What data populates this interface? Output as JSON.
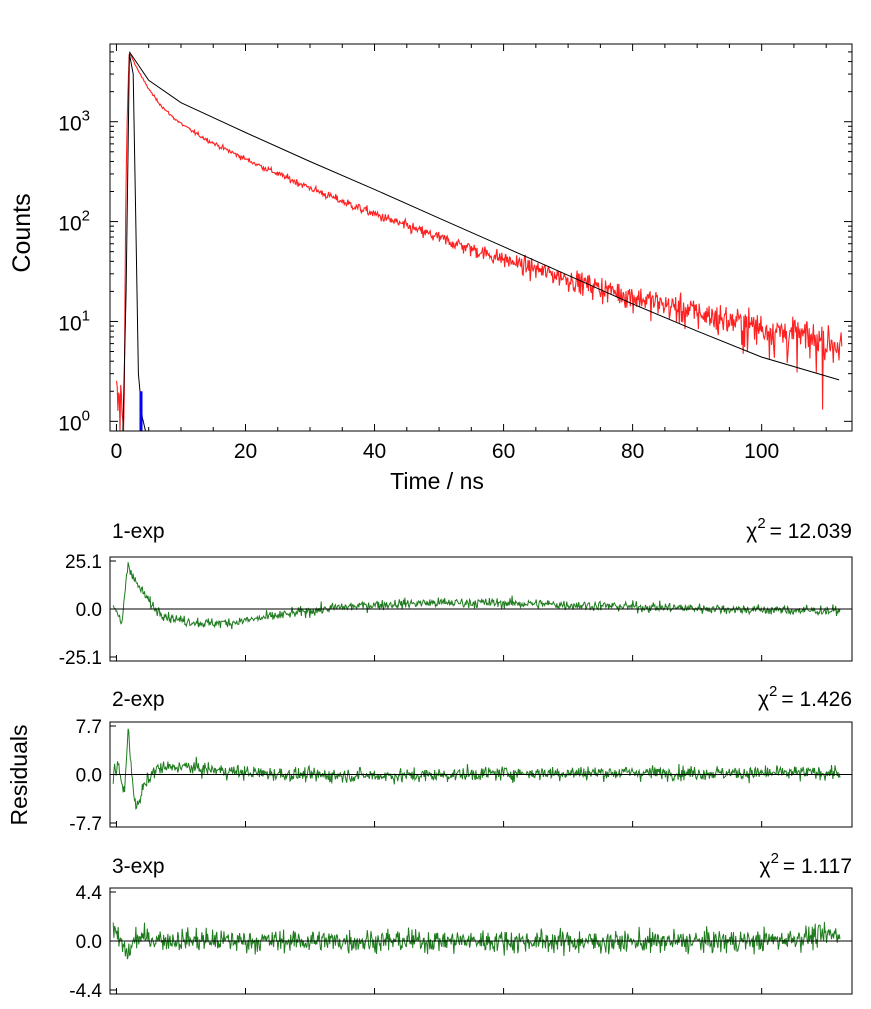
{
  "chart_data": [
    {
      "type": "line",
      "xlabel": "Time / ns",
      "ylabel": "Counts",
      "yscale": "log",
      "xlim": [
        -1,
        114
      ],
      "ylim": [
        0.8,
        6000
      ],
      "x_ticks": [
        "0",
        "20",
        "40",
        "60",
        "80",
        "100"
      ],
      "x_tick_values": [
        0,
        20,
        40,
        60,
        80,
        100
      ],
      "y_ticks": [
        {
          "value": 1,
          "base": "10",
          "exp": "0"
        },
        {
          "value": 10,
          "base": "10",
          "exp": "1"
        },
        {
          "value": 100,
          "base": "10",
          "exp": "2"
        },
        {
          "value": 1000,
          "base": "10",
          "exp": "3"
        }
      ],
      "series": [
        {
          "role": "decay",
          "color": "#ff2020",
          "decay_model": {
            "t0": 2.0,
            "rise_start": 1.2,
            "peak": 5000,
            "amplitudes": [
              3400,
              1300,
              300
            ],
            "lifetimes": [
              2.2,
              11.5,
              26.0
            ],
            "background": 1.5
          }
        },
        {
          "role": "fit",
          "color": "#000000",
          "points": [
            [
              2.0,
              5000
            ],
            [
              5,
              2600
            ],
            [
              10,
              1550
            ],
            [
              20,
              780
            ],
            [
              30,
              400
            ],
            [
              40,
              210
            ],
            [
              50,
              108
            ],
            [
              60,
              56
            ],
            [
              70,
              29
            ],
            [
              80,
              15
            ],
            [
              90,
              8
            ],
            [
              100,
              4.4
            ],
            [
              112,
              2.6
            ]
          ]
        },
        {
          "role": "irf",
          "color": "#000000",
          "points": [
            [
              1.0,
              0.8
            ],
            [
              1.5,
              20
            ],
            [
              2.0,
              4800
            ],
            [
              2.6,
              3000
            ],
            [
              3.0,
              100
            ],
            [
              3.4,
              3
            ],
            [
              4.0,
              1.1
            ],
            [
              4.5,
              0.8
            ]
          ]
        },
        {
          "role": "irf-marker",
          "color": "#0000ff",
          "points": [
            [
              3.8,
              0.8
            ],
            [
              3.8,
              2.0
            ]
          ]
        }
      ]
    },
    {
      "type": "line",
      "panel": "1-exp",
      "label": "1-exp",
      "chi_label": "χ",
      "chi_exp": "2",
      "chi_value": "= 12.039",
      "ylabel": "Residuals",
      "y_ticks": [
        "25.1",
        "0.0",
        "-25.1"
      ],
      "ylim": [
        -25.1,
        25.1
      ],
      "xlim": [
        -1,
        114
      ],
      "color": "#1e7b1e",
      "noise": 1.3,
      "shape_points": [
        [
          -0.5,
          0
        ],
        [
          0.5,
          -4
        ],
        [
          0.8,
          -10
        ],
        [
          1.2,
          6
        ],
        [
          1.8,
          24
        ],
        [
          2.8,
          15
        ],
        [
          4,
          9
        ],
        [
          6,
          0
        ],
        [
          8,
          -4
        ],
        [
          10,
          -6
        ],
        [
          14,
          -7.5
        ],
        [
          18,
          -7
        ],
        [
          22,
          -5
        ],
        [
          26,
          -3
        ],
        [
          30,
          -1
        ],
        [
          34,
          0.7
        ],
        [
          40,
          2.2
        ],
        [
          48,
          3.2
        ],
        [
          56,
          3.3
        ],
        [
          64,
          2.8
        ],
        [
          72,
          2.0
        ],
        [
          80,
          1.2
        ],
        [
          90,
          0.4
        ],
        [
          100,
          -0.5
        ],
        [
          112,
          -1.0
        ]
      ]
    },
    {
      "type": "line",
      "panel": "2-exp",
      "label": "2-exp",
      "chi_label": "χ",
      "chi_exp": "2",
      "chi_value": "= 1.426",
      "y_ticks": [
        "7.7",
        "0.0",
        "-7.7"
      ],
      "ylim": [
        -7.7,
        7.7
      ],
      "xlim": [
        -1,
        114
      ],
      "color": "#1e7b1e",
      "noise": 1.05,
      "shape_points": [
        [
          -0.5,
          0
        ],
        [
          0.3,
          1.5
        ],
        [
          0.8,
          -1.5
        ],
        [
          1.2,
          -3
        ],
        [
          1.8,
          6.8
        ],
        [
          2.2,
          2.5
        ],
        [
          2.8,
          -4
        ],
        [
          3.3,
          -5.3
        ],
        [
          4.2,
          -2
        ],
        [
          6,
          0.8
        ],
        [
          10,
          1.3
        ],
        [
          14,
          0.8
        ],
        [
          20,
          0.3
        ],
        [
          30,
          -0.1
        ],
        [
          45,
          -0.2
        ],
        [
          60,
          0.2
        ],
        [
          80,
          0.3
        ],
        [
          100,
          0.2
        ],
        [
          112,
          0.3
        ]
      ]
    },
    {
      "type": "line",
      "panel": "3-exp",
      "label": "3-exp",
      "chi_label": "χ",
      "chi_exp": "2",
      "chi_value": "= 1.117",
      "y_ticks": [
        "4.4",
        "0.0",
        "-4.4"
      ],
      "ylim": [
        -4.4,
        4.4
      ],
      "xlim": [
        -1,
        114
      ],
      "color": "#1e7b1e",
      "noise": 1.0,
      "shape_points": [
        [
          -0.5,
          0.8
        ],
        [
          0.3,
          0.2
        ],
        [
          1.0,
          -0.5
        ],
        [
          1.8,
          -1.2
        ],
        [
          3,
          0.3
        ],
        [
          8,
          0.1
        ],
        [
          20,
          0
        ],
        [
          40,
          0
        ],
        [
          60,
          0
        ],
        [
          80,
          -0.1
        ],
        [
          100,
          0
        ],
        [
          112,
          0.6
        ]
      ]
    }
  ]
}
